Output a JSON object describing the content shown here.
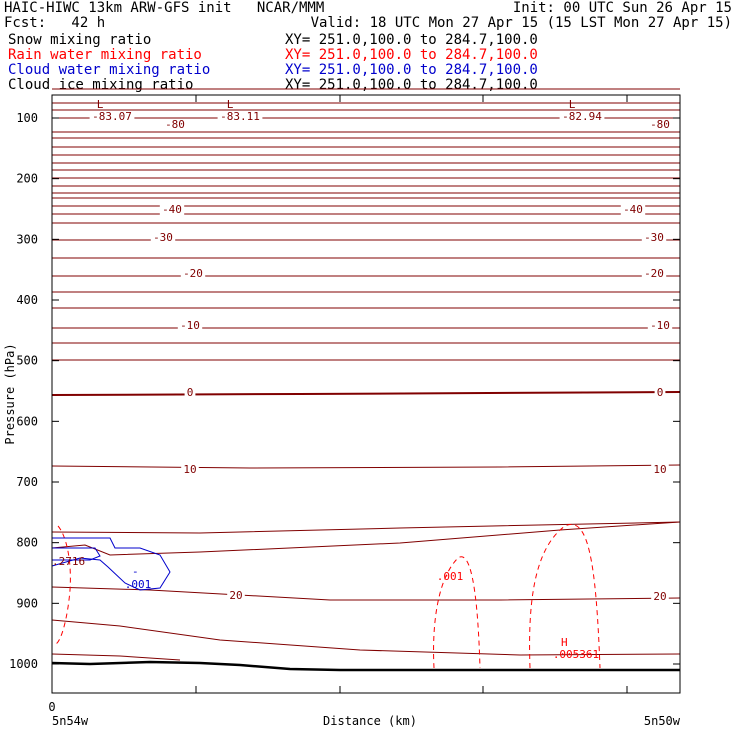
{
  "header": {
    "line1_left": "HAIC-HIWC 13km ARW-GFS init   NCAR/MMM",
    "line1_right": "Init: 00 UTC Sun 26 Apr 15",
    "line2_left": "Fcst:   42 h",
    "line2_right": "Valid: 18 UTC Mon 27 Apr 15 (15 LST Mon 27 Apr 15)",
    "fields": [
      {
        "name": "Snow mixing ratio",
        "xy": "XY= 251.0,100.0 to 284.7,100.0",
        "color": "#000000"
      },
      {
        "name": "Rain water mixing ratio",
        "xy": "XY= 251.0,100.0 to 284.7,100.0",
        "color": "#ff0000"
      },
      {
        "name": "Cloud water mixing ratio",
        "xy": "XY= 251.0,100.0 to 284.7,100.0",
        "color": "#0000cc"
      },
      {
        "name": "Cloud ice mixing ratio",
        "xy": "XY= 251.0,100.0 to 284.7,100.0",
        "color": "#000000"
      }
    ]
  },
  "chart_data": {
    "type": "contour",
    "ylabel": "Pressure (hPa)",
    "xlabel": "Distance (km)",
    "x_tick_zero": "0",
    "x_left_label": "5n54w",
    "x_right_label": "5n50w",
    "y_ticks": [
      100,
      200,
      300,
      400,
      500,
      600,
      700,
      800,
      900,
      1000
    ],
    "ylim": [
      50,
      1050
    ],
    "temperature_labels": [
      "-83.07",
      "-83.11",
      "-82.94",
      "-80",
      "-80",
      "-40",
      "-40",
      "-30",
      "-30",
      "-20",
      "-20",
      "-10",
      "-10",
      "0",
      "0",
      "10",
      "10",
      "20",
      "20"
    ],
    "low_marker": "L",
    "high_marker": "H",
    "rain_labels": [
      ".001",
      ".005361"
    ],
    "cloud_water_labels": [
      ".001"
    ],
    "left_edge_label": ".2716",
    "colors": {
      "temperature": "#800000",
      "rain": "#ff0000",
      "cloud_water": "#0000cc",
      "terrain": "#000000"
    }
  }
}
